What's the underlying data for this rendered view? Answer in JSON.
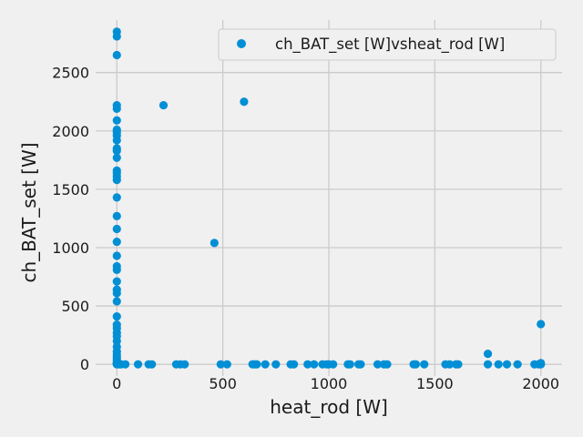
{
  "chart_data": {
    "type": "scatter",
    "title": "",
    "xlabel": "heat_rod [W]",
    "ylabel": "ch_BAT_set [W]",
    "xlim": [
      -100,
      2100
    ],
    "ylim": [
      -100,
      2950
    ],
    "xticks": [
      0,
      500,
      1000,
      1500,
      2000
    ],
    "yticks": [
      0,
      500,
      1000,
      1500,
      2000,
      2500
    ],
    "grid": true,
    "legend_position": "top-right",
    "colors": {
      "marker": "#008fd5",
      "background": "#f0f0f0",
      "grid": "#cbcbcb",
      "text": "#1a1a1a"
    },
    "series": [
      {
        "name": "ch_BAT_set [W]vsheat_rod [W]",
        "points": [
          [
            0,
            2850
          ],
          [
            0,
            2810
          ],
          [
            0,
            2650
          ],
          [
            0,
            2220
          ],
          [
            0,
            2190
          ],
          [
            0,
            2090
          ],
          [
            0,
            2010
          ],
          [
            0,
            1990
          ],
          [
            0,
            1960
          ],
          [
            0,
            1920
          ],
          [
            0,
            1850
          ],
          [
            0,
            1830
          ],
          [
            0,
            1770
          ],
          [
            0,
            1660
          ],
          [
            0,
            1640
          ],
          [
            0,
            1610
          ],
          [
            0,
            1580
          ],
          [
            0,
            1430
          ],
          [
            0,
            1270
          ],
          [
            0,
            1160
          ],
          [
            0,
            1050
          ],
          [
            0,
            930
          ],
          [
            0,
            840
          ],
          [
            0,
            810
          ],
          [
            0,
            710
          ],
          [
            0,
            640
          ],
          [
            0,
            610
          ],
          [
            0,
            540
          ],
          [
            0,
            410
          ],
          [
            0,
            340
          ],
          [
            0,
            310
          ],
          [
            0,
            270
          ],
          [
            0,
            240
          ],
          [
            0,
            200
          ],
          [
            0,
            150
          ],
          [
            0,
            110
          ],
          [
            0,
            80
          ],
          [
            0,
            60
          ],
          [
            0,
            40
          ],
          [
            0,
            20
          ],
          [
            0,
            10
          ],
          [
            0,
            5
          ],
          [
            0,
            0
          ],
          [
            10,
            0
          ],
          [
            20,
            0
          ],
          [
            40,
            0
          ],
          [
            100,
            0
          ],
          [
            150,
            0
          ],
          [
            165,
            0
          ],
          [
            220,
            2220
          ],
          [
            280,
            0
          ],
          [
            300,
            0
          ],
          [
            320,
            0
          ],
          [
            460,
            1040
          ],
          [
            490,
            0
          ],
          [
            520,
            0
          ],
          [
            600,
            2250
          ],
          [
            640,
            0
          ],
          [
            650,
            0
          ],
          [
            660,
            0
          ],
          [
            700,
            0
          ],
          [
            750,
            0
          ],
          [
            820,
            0
          ],
          [
            835,
            0
          ],
          [
            900,
            0
          ],
          [
            930,
            0
          ],
          [
            970,
            0
          ],
          [
            990,
            0
          ],
          [
            1000,
            0
          ],
          [
            1020,
            0
          ],
          [
            1090,
            0
          ],
          [
            1100,
            0
          ],
          [
            1140,
            0
          ],
          [
            1150,
            0
          ],
          [
            1230,
            0
          ],
          [
            1260,
            0
          ],
          [
            1275,
            0
          ],
          [
            1400,
            0
          ],
          [
            1410,
            0
          ],
          [
            1450,
            0
          ],
          [
            1550,
            0
          ],
          [
            1570,
            0
          ],
          [
            1600,
            0
          ],
          [
            1610,
            0
          ],
          [
            1750,
            90
          ],
          [
            1750,
            0
          ],
          [
            1800,
            0
          ],
          [
            1840,
            0
          ],
          [
            1890,
            0
          ],
          [
            1970,
            0
          ],
          [
            1990,
            0
          ],
          [
            2000,
            345
          ],
          [
            2000,
            10
          ],
          [
            2000,
            0
          ]
        ]
      }
    ]
  }
}
